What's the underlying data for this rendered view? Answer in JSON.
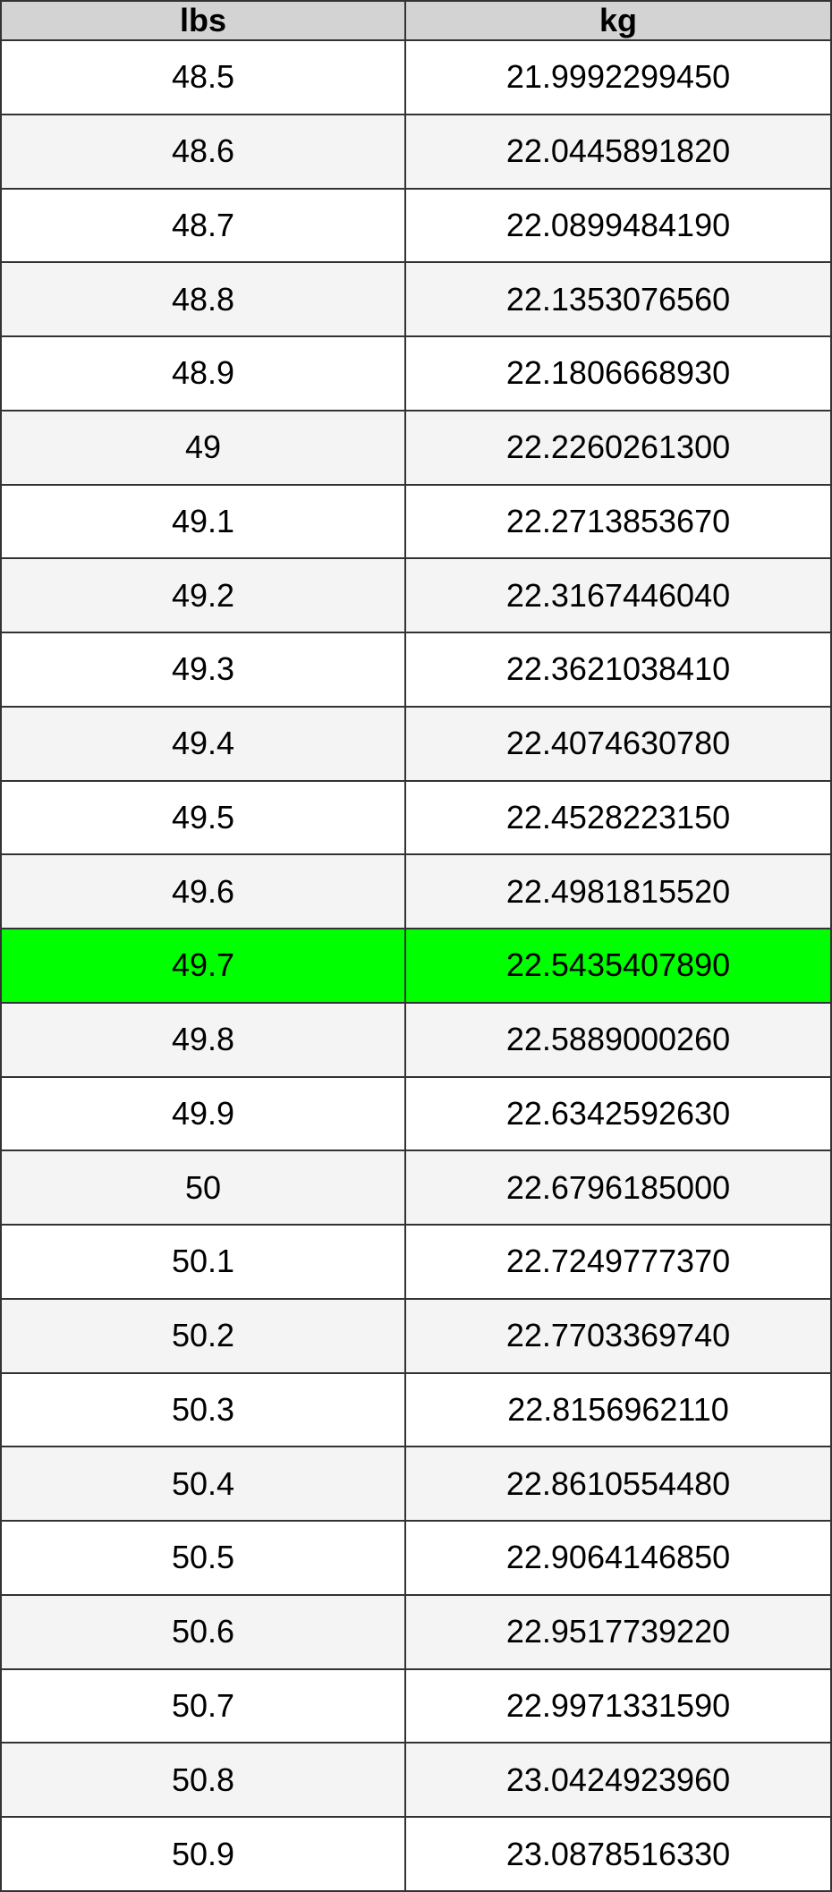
{
  "table": {
    "header": [
      "lbs",
      "kg"
    ],
    "rows": [
      [
        "48.5",
        "21.9992299450"
      ],
      [
        "48.6",
        "22.0445891820"
      ],
      [
        "48.7",
        "22.0899484190"
      ],
      [
        "48.8",
        "22.1353076560"
      ],
      [
        "48.9",
        "22.1806668930"
      ],
      [
        "49",
        "22.2260261300"
      ],
      [
        "49.1",
        "22.2713853670"
      ],
      [
        "49.2",
        "22.3167446040"
      ],
      [
        "49.3",
        "22.3621038410"
      ],
      [
        "49.4",
        "22.4074630780"
      ],
      [
        "49.5",
        "22.4528223150"
      ],
      [
        "49.6",
        "22.4981815520"
      ],
      [
        "49.7",
        "22.5435407890"
      ],
      [
        "49.8",
        "22.5889000260"
      ],
      [
        "49.9",
        "22.6342592630"
      ],
      [
        "50",
        "22.6796185000"
      ],
      [
        "50.1",
        "22.7249777370"
      ],
      [
        "50.2",
        "22.7703369740"
      ],
      [
        "50.3",
        "22.8156962110"
      ],
      [
        "50.4",
        "22.8610554480"
      ],
      [
        "50.5",
        "22.9064146850"
      ],
      [
        "50.6",
        "22.9517739220"
      ],
      [
        "50.7",
        "22.9971331590"
      ],
      [
        "50.8",
        "23.0424923960"
      ],
      [
        "50.9",
        "23.0878516330"
      ]
    ]
  }
}
